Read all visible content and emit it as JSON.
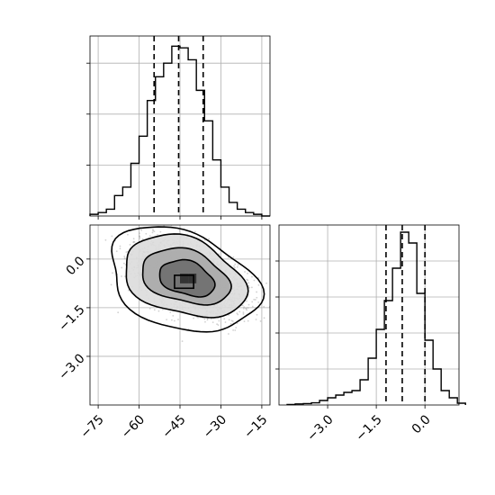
{
  "chart_data": {
    "type": "corner",
    "colors": {
      "line": "#000000",
      "grid": "#b0b0b0",
      "scatter": "#9a9a9a",
      "contour_fill_light": "#dcdcdc",
      "contour_fill_mid": "#a8a8a8",
      "contour_fill_dark": "#6e6e6e",
      "contour_fill_darkest": "#333333"
    },
    "grid": true,
    "parameters": [
      {
        "id": "p1",
        "range": [
          -78,
          -12
        ],
        "ticks": [
          -75,
          -60,
          -45,
          -30,
          -15
        ],
        "tick_labels": [
          "−75",
          "−60",
          "−45",
          "−30",
          "−15"
        ]
      },
      {
        "id": "p2",
        "range": [
          -4.5,
          1.05
        ],
        "ticks": [
          -3.0,
          -1.5,
          0.0
        ],
        "tick_labels": [
          "−3.0",
          "−1.5",
          "0.0"
        ]
      }
    ],
    "marginal_1": {
      "param": "p1",
      "bins": [
        {
          "x0": -78,
          "x1": -75,
          "v": 0.01
        },
        {
          "x0": -75,
          "x1": -72,
          "v": 0.02
        },
        {
          "x0": -72,
          "x1": -69,
          "v": 0.04
        },
        {
          "x0": -69,
          "x1": -66,
          "v": 0.12
        },
        {
          "x0": -66,
          "x1": -63,
          "v": 0.17
        },
        {
          "x0": -63,
          "x1": -60,
          "v": 0.31
        },
        {
          "x0": -60,
          "x1": -57,
          "v": 0.47
        },
        {
          "x0": -57,
          "x1": -54,
          "v": 0.68
        },
        {
          "x0": -54,
          "x1": -51,
          "v": 0.82
        },
        {
          "x0": -51,
          "x1": -48,
          "v": 0.9
        },
        {
          "x0": -48,
          "x1": -45,
          "v": 1.0
        },
        {
          "x0": -45,
          "x1": -42,
          "v": 0.99
        },
        {
          "x0": -42,
          "x1": -39,
          "v": 0.92
        },
        {
          "x0": -39,
          "x1": -36,
          "v": 0.74
        },
        {
          "x0": -36,
          "x1": -33,
          "v": 0.56
        },
        {
          "x0": -33,
          "x1": -30,
          "v": 0.33
        },
        {
          "x0": -30,
          "x1": -27,
          "v": 0.17
        },
        {
          "x0": -27,
          "x1": -24,
          "v": 0.08
        },
        {
          "x0": -24,
          "x1": -21,
          "v": 0.04
        },
        {
          "x0": -21,
          "x1": -18,
          "v": 0.02
        },
        {
          "x0": -18,
          "x1": -15,
          "v": 0.01
        },
        {
          "x0": -15,
          "x1": -12,
          "v": 0.0
        }
      ],
      "ymax": 1.06,
      "y_ticks": [
        0.3,
        0.6,
        0.9
      ],
      "quantile_lines": [
        -54.5,
        -45.5,
        -36.5
      ]
    },
    "marginal_2": {
      "param": "p2",
      "bins": [
        {
          "x0": -4.25,
          "x1": -4.0,
          "v": 0.003
        },
        {
          "x0": -4.0,
          "x1": -3.75,
          "v": 0.006
        },
        {
          "x0": -3.75,
          "x1": -3.5,
          "v": 0.008
        },
        {
          "x0": -3.5,
          "x1": -3.25,
          "v": 0.012
        },
        {
          "x0": -3.25,
          "x1": -3.0,
          "v": 0.025
        },
        {
          "x0": -3.0,
          "x1": -2.75,
          "v": 0.04
        },
        {
          "x0": -2.75,
          "x1": -2.5,
          "v": 0.055
        },
        {
          "x0": -2.5,
          "x1": -2.25,
          "v": 0.07
        },
        {
          "x0": -2.25,
          "x1": -2.0,
          "v": 0.08
        },
        {
          "x0": -2.0,
          "x1": -1.75,
          "v": 0.14
        },
        {
          "x0": -1.75,
          "x1": -1.5,
          "v": 0.26
        },
        {
          "x0": -1.5,
          "x1": -1.25,
          "v": 0.42
        },
        {
          "x0": -1.25,
          "x1": -1.0,
          "v": 0.58
        },
        {
          "x0": -1.0,
          "x1": -0.75,
          "v": 0.76
        },
        {
          "x0": -0.75,
          "x1": -0.5,
          "v": 0.96
        },
        {
          "x0": -0.5,
          "x1": -0.25,
          "v": 0.9
        },
        {
          "x0": -0.25,
          "x1": 0.0,
          "v": 0.62
        },
        {
          "x0": 0.0,
          "x1": 0.25,
          "v": 0.36
        },
        {
          "x0": 0.25,
          "x1": 0.5,
          "v": 0.2
        },
        {
          "x0": 0.5,
          "x1": 0.75,
          "v": 0.08
        },
        {
          "x0": 0.75,
          "x1": 1.0,
          "v": 0.04
        },
        {
          "x0": 1.0,
          "x1": 1.25,
          "v": 0.01
        }
      ],
      "ymax": 1.0,
      "y_ticks": [
        0.2,
        0.4,
        0.6,
        0.8
      ],
      "quantile_lines": [
        -1.2,
        -0.7,
        0.0
      ]
    },
    "joint": {
      "x_param": "p1",
      "y_param": "p2",
      "center": [
        -42,
        -0.6
      ],
      "spread": [
        9.5,
        0.55
      ],
      "correlation": -0.45,
      "n_points": 2600,
      "seed": 7,
      "peak_box": [
        [
          -47,
          -0.9
        ],
        [
          -40,
          -0.5
        ]
      ],
      "density_cells": [
        {
          "x0": -45,
          "x1": -42,
          "y0": -0.75,
          "y1": -0.45,
          "shade": "contour_fill_darkest"
        },
        {
          "x0": -42,
          "x1": -39,
          "y0": -0.75,
          "y1": -0.45,
          "shade": "contour_fill_darkest"
        }
      ],
      "contours": [
        {
          "rx": 10.0,
          "ry": 0.55,
          "cx": -42.5,
          "cy": -0.6,
          "fill": "contour_fill_dark"
        },
        {
          "rx": 16.0,
          "ry": 0.85,
          "cx": -43.0,
          "cy": -0.55,
          "fill": "contour_fill_mid"
        },
        {
          "rx": 22.0,
          "ry": 1.25,
          "cx": -43.5,
          "cy": -0.55,
          "fill": "contour_fill_light"
        },
        {
          "rx": 27.0,
          "ry": 1.6,
          "cx": -44.0,
          "cy": -0.65,
          "fill": "none"
        }
      ]
    }
  }
}
